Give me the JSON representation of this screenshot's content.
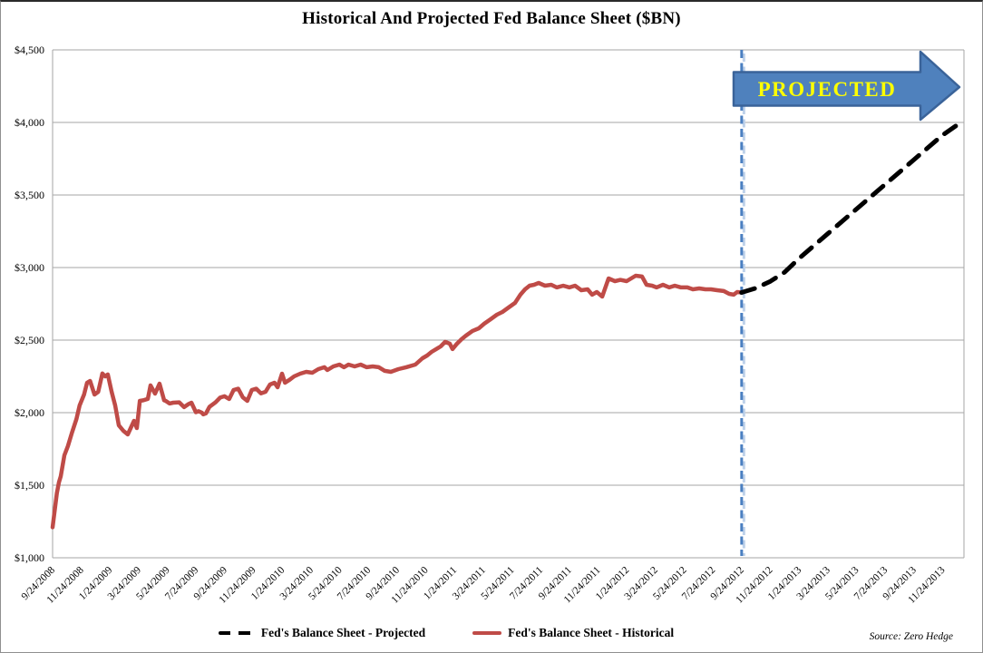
{
  "figure": {
    "title": "Historical And Projected Fed Balance Sheet ($BN)",
    "source": "Source: Zero Hedge"
  },
  "legend": {
    "projected_label": "Fed's Balance Sheet - Projected",
    "historical_label": "Fed's Balance Sheet - Historical"
  },
  "chart_data": {
    "type": "line",
    "title": "Historical And Projected Fed Balance Sheet ($BN)",
    "xlabel": "",
    "ylabel": "",
    "ylim": [
      1000,
      4500
    ],
    "grid": "horizontal",
    "legend_position": "bottom-center",
    "x_unit": "months since 9/24/2008, weekly observations",
    "y_ticks": [
      [
        1000,
        "$1,000"
      ],
      [
        1500,
        "$1,500"
      ],
      [
        2000,
        "$2,000"
      ],
      [
        2500,
        "$2,500"
      ],
      [
        3000,
        "$3,000"
      ],
      [
        3500,
        "$3,500"
      ],
      [
        4000,
        "$4,000"
      ],
      [
        4500,
        "$4,500"
      ]
    ],
    "x_tick_interval_months": 2,
    "x_tick_labels": [
      "9/24/2008",
      "11/24/2008",
      "1/24/2009",
      "3/24/2009",
      "5/24/2009",
      "7/24/2009",
      "9/24/2009",
      "11/24/2009",
      "1/24/2010",
      "3/24/2010",
      "5/24/2010",
      "7/24/2010",
      "9/24/2010",
      "11/24/2010",
      "1/24/2011",
      "3/24/2011",
      "5/24/2011",
      "7/24/2011",
      "9/24/2011",
      "11/24/2011",
      "1/24/2012",
      "3/24/2012",
      "5/24/2012",
      "7/24/2012",
      "9/24/2012",
      "11/24/2012",
      "1/24/2013",
      "3/24/2013",
      "5/24/2013",
      "7/24/2013",
      "9/24/2013",
      "11/24/2013"
    ],
    "divider_month": 48,
    "divider_date": "9/24/2012",
    "colors": {
      "grid": "#a6a6a6",
      "axis_text": "#000000",
      "divider": "#4a7fc1",
      "divider_halo": "#bed1e9"
    },
    "annotation_arrow": {
      "text": "PROJECTED",
      "fill": "#4f81bd",
      "border": "#3a6399",
      "text_color": "#ffff00"
    },
    "series": [
      {
        "name": "Fed's Balance Sheet - Historical",
        "style": "solid",
        "color": "#bf4b47",
        "points": [
          [
            0,
            1210
          ],
          [
            0.3,
            1445
          ],
          [
            0.44,
            1520
          ],
          [
            0.57,
            1562
          ],
          [
            0.82,
            1706
          ],
          [
            1.07,
            1770
          ],
          [
            1.35,
            1863
          ],
          [
            1.66,
            1956
          ],
          [
            1.88,
            2050
          ],
          [
            2.19,
            2125
          ],
          [
            2.4,
            2206
          ],
          [
            2.61,
            2219
          ],
          [
            2.92,
            2125
          ],
          [
            3.18,
            2144
          ],
          [
            3.47,
            2270
          ],
          [
            3.66,
            2250
          ],
          [
            3.85,
            2263
          ],
          [
            4.11,
            2144
          ],
          [
            4.36,
            2050
          ],
          [
            4.61,
            1913
          ],
          [
            4.93,
            1875
          ],
          [
            5.24,
            1850
          ],
          [
            5.67,
            1944
          ],
          [
            5.87,
            1894
          ],
          [
            6.08,
            2081
          ],
          [
            6.32,
            2085
          ],
          [
            6.63,
            2095
          ],
          [
            6.82,
            2188
          ],
          [
            7.14,
            2131
          ],
          [
            7.45,
            2200
          ],
          [
            7.77,
            2085
          ],
          [
            7.88,
            2081
          ],
          [
            8.15,
            2063
          ],
          [
            8.4,
            2069
          ],
          [
            8.82,
            2071
          ],
          [
            9.16,
            2038
          ],
          [
            9.48,
            2060
          ],
          [
            9.67,
            2069
          ],
          [
            9.98,
            2003
          ],
          [
            10.17,
            2010
          ],
          [
            10.4,
            2000
          ],
          [
            10.49,
            1988
          ],
          [
            10.68,
            1995
          ],
          [
            10.93,
            2040
          ],
          [
            11.35,
            2071
          ],
          [
            11.67,
            2104
          ],
          [
            11.98,
            2113
          ],
          [
            12.3,
            2094
          ],
          [
            12.61,
            2156
          ],
          [
            12.93,
            2165
          ],
          [
            13.25,
            2106
          ],
          [
            13.56,
            2081
          ],
          [
            13.88,
            2156
          ],
          [
            14.19,
            2165
          ],
          [
            14.51,
            2133
          ],
          [
            14.83,
            2144
          ],
          [
            15.14,
            2194
          ],
          [
            15.46,
            2206
          ],
          [
            15.67,
            2175
          ],
          [
            15.98,
            2269
          ],
          [
            16.19,
            2206
          ],
          [
            16.51,
            2227
          ],
          [
            16.82,
            2250
          ],
          [
            17.25,
            2269
          ],
          [
            17.67,
            2281
          ],
          [
            18.09,
            2275
          ],
          [
            18.51,
            2300
          ],
          [
            18.93,
            2313
          ],
          [
            19.14,
            2294
          ],
          [
            19.56,
            2319
          ],
          [
            19.98,
            2331
          ],
          [
            20.3,
            2313
          ],
          [
            20.61,
            2331
          ],
          [
            21.04,
            2319
          ],
          [
            21.46,
            2331
          ],
          [
            21.88,
            2313
          ],
          [
            22.3,
            2319
          ],
          [
            22.72,
            2313
          ],
          [
            23.14,
            2288
          ],
          [
            23.56,
            2281
          ],
          [
            24.09,
            2300
          ],
          [
            24.63,
            2313
          ],
          [
            25.27,
            2331
          ],
          [
            25.77,
            2375
          ],
          [
            26.09,
            2394
          ],
          [
            26.4,
            2419
          ],
          [
            26.72,
            2438
          ],
          [
            27.03,
            2456
          ],
          [
            27.35,
            2488
          ],
          [
            27.67,
            2475
          ],
          [
            27.86,
            2438
          ],
          [
            28.17,
            2475
          ],
          [
            28.49,
            2506
          ],
          [
            28.8,
            2531
          ],
          [
            29.25,
            2563
          ],
          [
            29.69,
            2581
          ],
          [
            30.07,
            2613
          ],
          [
            30.51,
            2644
          ],
          [
            30.95,
            2675
          ],
          [
            31.33,
            2694
          ],
          [
            31.77,
            2725
          ],
          [
            32.21,
            2756
          ],
          [
            32.59,
            2813
          ],
          [
            32.91,
            2850
          ],
          [
            33.23,
            2875
          ],
          [
            33.54,
            2881
          ],
          [
            33.86,
            2894
          ],
          [
            34.3,
            2875
          ],
          [
            34.74,
            2881
          ],
          [
            35.12,
            2863
          ],
          [
            35.57,
            2875
          ],
          [
            36.01,
            2863
          ],
          [
            36.39,
            2875
          ],
          [
            36.83,
            2844
          ],
          [
            37.27,
            2850
          ],
          [
            37.59,
            2813
          ],
          [
            37.91,
            2831
          ],
          [
            38.29,
            2800
          ],
          [
            38.73,
            2925
          ],
          [
            39.17,
            2906
          ],
          [
            39.55,
            2915
          ],
          [
            39.99,
            2906
          ],
          [
            40.62,
            2944
          ],
          [
            41.06,
            2938
          ],
          [
            41.38,
            2881
          ],
          [
            41.76,
            2875
          ],
          [
            42.07,
            2863
          ],
          [
            42.52,
            2881
          ],
          [
            42.96,
            2863
          ],
          [
            43.34,
            2875
          ],
          [
            43.78,
            2863
          ],
          [
            44.22,
            2863
          ],
          [
            44.6,
            2850
          ],
          [
            45.04,
            2856
          ],
          [
            45.48,
            2850
          ],
          [
            45.86,
            2850
          ],
          [
            46.3,
            2844
          ],
          [
            46.75,
            2838
          ],
          [
            47.13,
            2819
          ],
          [
            47.44,
            2813
          ],
          [
            47.69,
            2831
          ],
          [
            48,
            2828
          ]
        ]
      },
      {
        "name": "Fed's Balance Sheet - Projected",
        "style": "dashed",
        "color": "#000000",
        "points": [
          [
            48,
            2828
          ],
          [
            49,
            2858
          ],
          [
            50,
            2905
          ],
          [
            51,
            2968
          ],
          [
            52,
            3063
          ],
          [
            53,
            3148
          ],
          [
            54,
            3233
          ],
          [
            55,
            3318
          ],
          [
            56,
            3403
          ],
          [
            57,
            3488
          ],
          [
            58,
            3573
          ],
          [
            59,
            3658
          ],
          [
            60,
            3743
          ],
          [
            61,
            3828
          ],
          [
            62,
            3913
          ],
          [
            63.2,
            3995
          ]
        ]
      }
    ]
  }
}
